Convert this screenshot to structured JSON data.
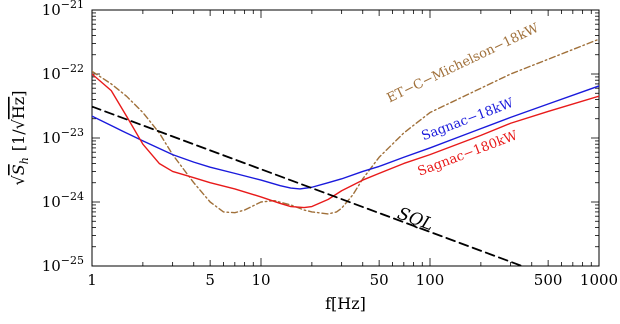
{
  "chart_data": {
    "type": "line",
    "title": "",
    "xlabel": "f[Hz]",
    "ylabel": "√S_h [1/√Hz]",
    "ylabel_parts": {
      "root": "√",
      "S": "S",
      "sub": "h",
      "unit_open": "[1/",
      "unit_root": "√",
      "unit_hz": "Hz",
      "unit_close": "]"
    },
    "x_scale": "log",
    "y_scale": "log",
    "xlim": [
      1,
      1000
    ],
    "ylim": [
      1e-25,
      1e-21
    ],
    "x_ticks": [
      1,
      5,
      10,
      50,
      100,
      500,
      1000
    ],
    "x_tick_labels": [
      "1",
      "5",
      "10",
      "50",
      "100",
      "500",
      "1000"
    ],
    "y_ticks": [
      1e-25,
      1e-24,
      1e-23,
      1e-22,
      1e-21
    ],
    "y_tick_labels": [
      {
        "base": "10",
        "exp": "−25"
      },
      {
        "base": "10",
        "exp": "−24"
      },
      {
        "base": "10",
        "exp": "−23"
      },
      {
        "base": "10",
        "exp": "−22"
      },
      {
        "base": "10",
        "exp": "−21"
      }
    ],
    "grid": false,
    "series": [
      {
        "name": "ET-C-Michelson-18kW",
        "color": "#a0703a",
        "style": "dashdot",
        "x": [
          1,
          1.3,
          1.6,
          2,
          2.5,
          3,
          4,
          5,
          6,
          7,
          8,
          10,
          12,
          15,
          18,
          20,
          25,
          28,
          30,
          35,
          40,
          50,
          70,
          100,
          200,
          300,
          500,
          1000
        ],
        "y": [
          1.1e-22,
          7e-23,
          4.5e-23,
          2.5e-23,
          1.2e-23,
          5.5e-24,
          2e-24,
          1e-24,
          7e-25,
          6.8e-25,
          7.5e-25,
          1e-24,
          1.05e-24,
          9e-25,
          7.5e-25,
          7e-25,
          6.5e-25,
          7e-25,
          8e-25,
          1.3e-24,
          2.3e-24,
          5e-24,
          1.2e-23,
          2.5e-23,
          6e-23,
          1e-22,
          1.7e-22,
          3.5e-22
        ]
      },
      {
        "name": "Sagnac−18kW",
        "color": "#1a1adc",
        "style": "solid",
        "x": [
          1,
          1.5,
          2,
          3,
          4,
          5,
          7,
          10,
          13,
          15,
          17,
          20,
          25,
          30,
          40,
          50,
          70,
          100,
          150,
          200,
          300,
          500,
          1000
        ],
        "y": [
          2.2e-23,
          1.3e-23,
          9e-24,
          5.5e-24,
          4.2e-24,
          3.5e-24,
          2.8e-24,
          2.2e-24,
          1.8e-24,
          1.65e-24,
          1.6e-24,
          1.7e-24,
          2e-24,
          2.3e-24,
          3e-24,
          3.6e-24,
          5e-24,
          7e-24,
          1.05e-23,
          1.4e-23,
          2.1e-23,
          3.4e-23,
          6.5e-23
        ]
      },
      {
        "name": "Sagnac−180kW",
        "color": "#e81a1a",
        "style": "solid",
        "x": [
          1,
          1.3,
          1.6,
          2,
          2.5,
          3,
          4,
          5,
          7,
          10,
          13,
          15,
          18,
          20,
          25,
          30,
          40,
          50,
          70,
          100,
          200,
          300,
          500,
          1000
        ],
        "y": [
          1e-22,
          5.5e-23,
          2.2e-23,
          8e-24,
          4e-24,
          3e-24,
          2.4e-24,
          2e-24,
          1.6e-24,
          1.2e-24,
          9.5e-25,
          8.5e-25,
          8.2e-25,
          8.5e-25,
          1.1e-24,
          1.5e-24,
          2.2e-24,
          2.8e-24,
          4e-24,
          5.5e-24,
          1.1e-23,
          1.7e-23,
          2.6e-23,
          4.5e-23
        ]
      },
      {
        "name": "SQL",
        "color": "#000000",
        "style": "dashed",
        "x": [
          1,
          350
        ],
        "y": [
          3.1e-23,
          1e-25
        ]
      }
    ],
    "annotations": [
      {
        "text": "ET−C−Michelson−18kW",
        "series": "ET-C-Michelson-18kW",
        "color": "#a0703a",
        "at_x": 160,
        "at_y": 1.3e-22
      },
      {
        "text": "Sagnac−18kW",
        "series": "Sagnac−18kW",
        "color": "#1a1adc",
        "at_x": 170,
        "at_y": 1.7e-23
      },
      {
        "text": "Sagnac−180kW",
        "series": "Sagnac−180kW",
        "color": "#e81a1a",
        "at_x": 170,
        "at_y": 5e-24
      },
      {
        "text": "SQL",
        "series": "SQL",
        "color": "#000000",
        "at_x": 80,
        "at_y": 4.5e-25
      }
    ]
  }
}
